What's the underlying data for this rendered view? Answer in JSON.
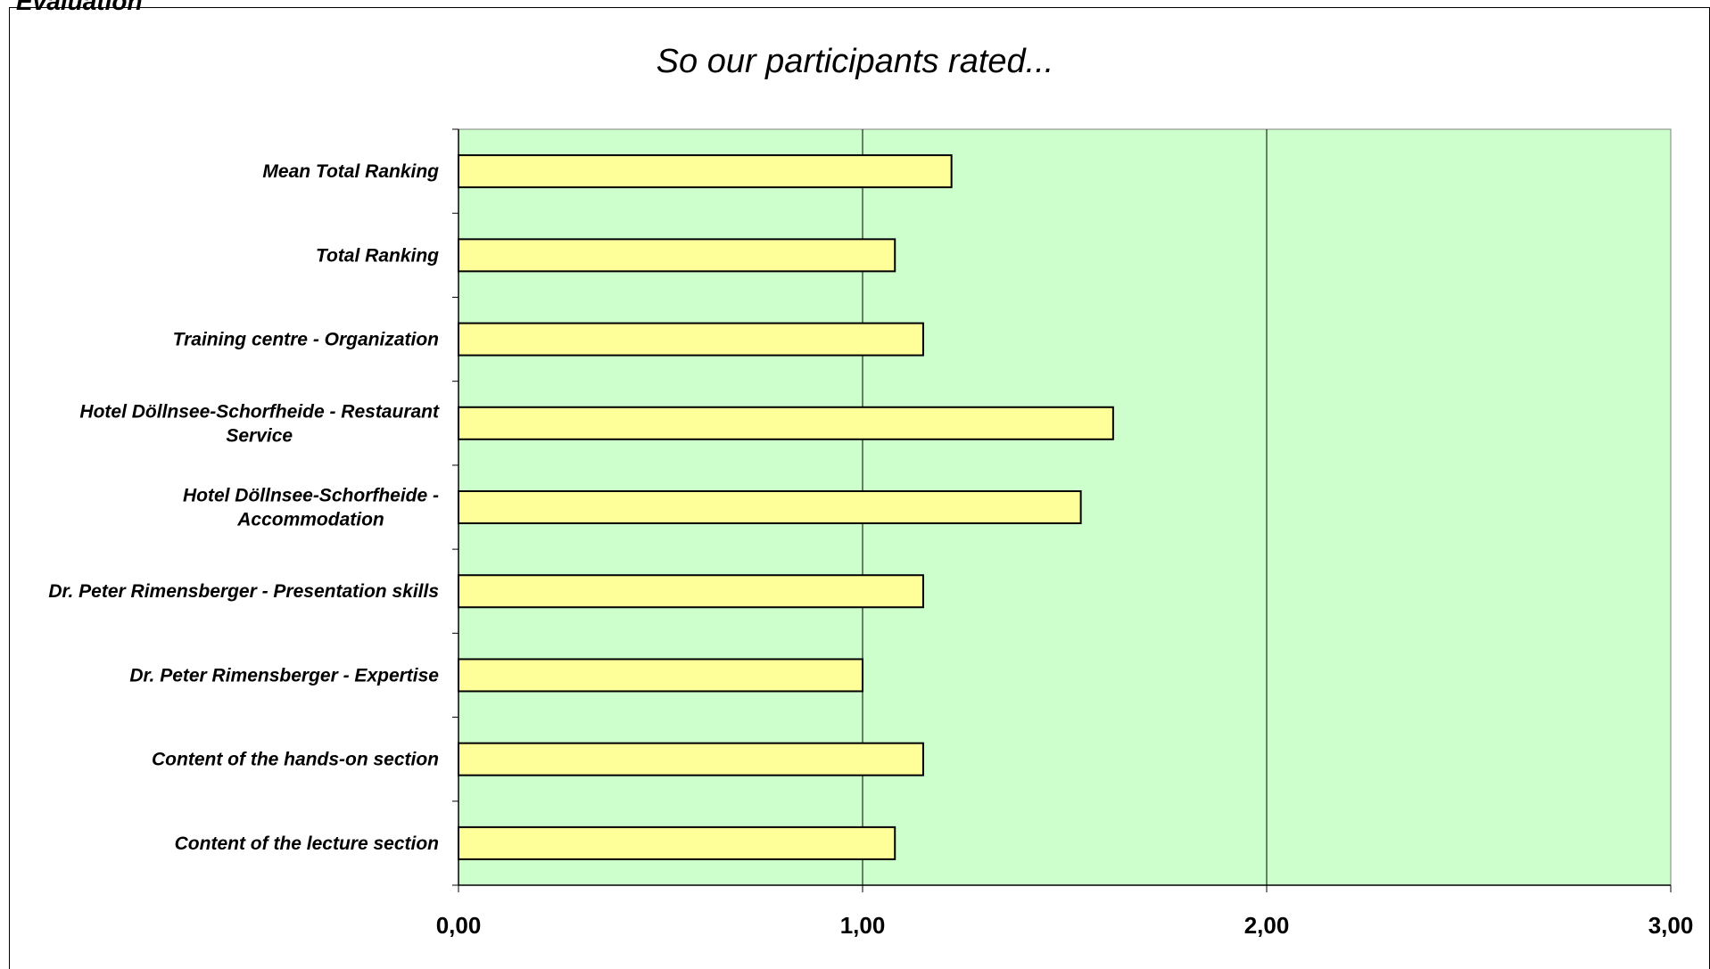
{
  "page": {
    "heading": "Evaluation"
  },
  "chart_data": {
    "type": "bar",
    "orientation": "horizontal",
    "title": "So our participants rated...",
    "xlabel": "",
    "ylabel": "",
    "xlim": [
      0,
      3
    ],
    "x_ticks": [
      0,
      1,
      2,
      3
    ],
    "x_tick_labels": [
      "0,00",
      "1,00",
      "2,00",
      "3,00"
    ],
    "grid": "vertical major gridlines",
    "legend": "none",
    "categories": [
      "Mean Total Ranking",
      "Total Ranking",
      "Training centre - Organization",
      "Hotel Döllnsee-Schorfheide - Restaurant Service",
      "Hotel Döllnsee-Schorfheide - Accommodation",
      "Dr. Peter Rimensberger - Presentation skills",
      "Dr. Peter Rimensberger - Expertise",
      "Content of the hands-on section",
      "Content of the lecture section"
    ],
    "category_lines": [
      [
        "Mean Total Ranking"
      ],
      [
        "Total Ranking"
      ],
      [
        "Training centre - Organization"
      ],
      [
        "Hotel Döllnsee-Schorfheide - Restaurant",
        "Service"
      ],
      [
        "Hotel Döllnsee-Schorfheide -",
        "Accommodation"
      ],
      [
        "Dr. Peter Rimensberger - Presentation skills"
      ],
      [
        "Dr. Peter Rimensberger - Expertise"
      ],
      [
        "Content of the hands-on section"
      ],
      [
        "Content of the lecture section"
      ]
    ],
    "values": [
      1.22,
      1.08,
      1.15,
      1.62,
      1.54,
      1.15,
      1.0,
      1.15,
      1.08
    ],
    "colors": {
      "plot_background": "#ccffcc",
      "bar_fill": "#ffff99",
      "bar_stroke": "#000000",
      "gridline": "#000000",
      "text": "#000000"
    }
  }
}
